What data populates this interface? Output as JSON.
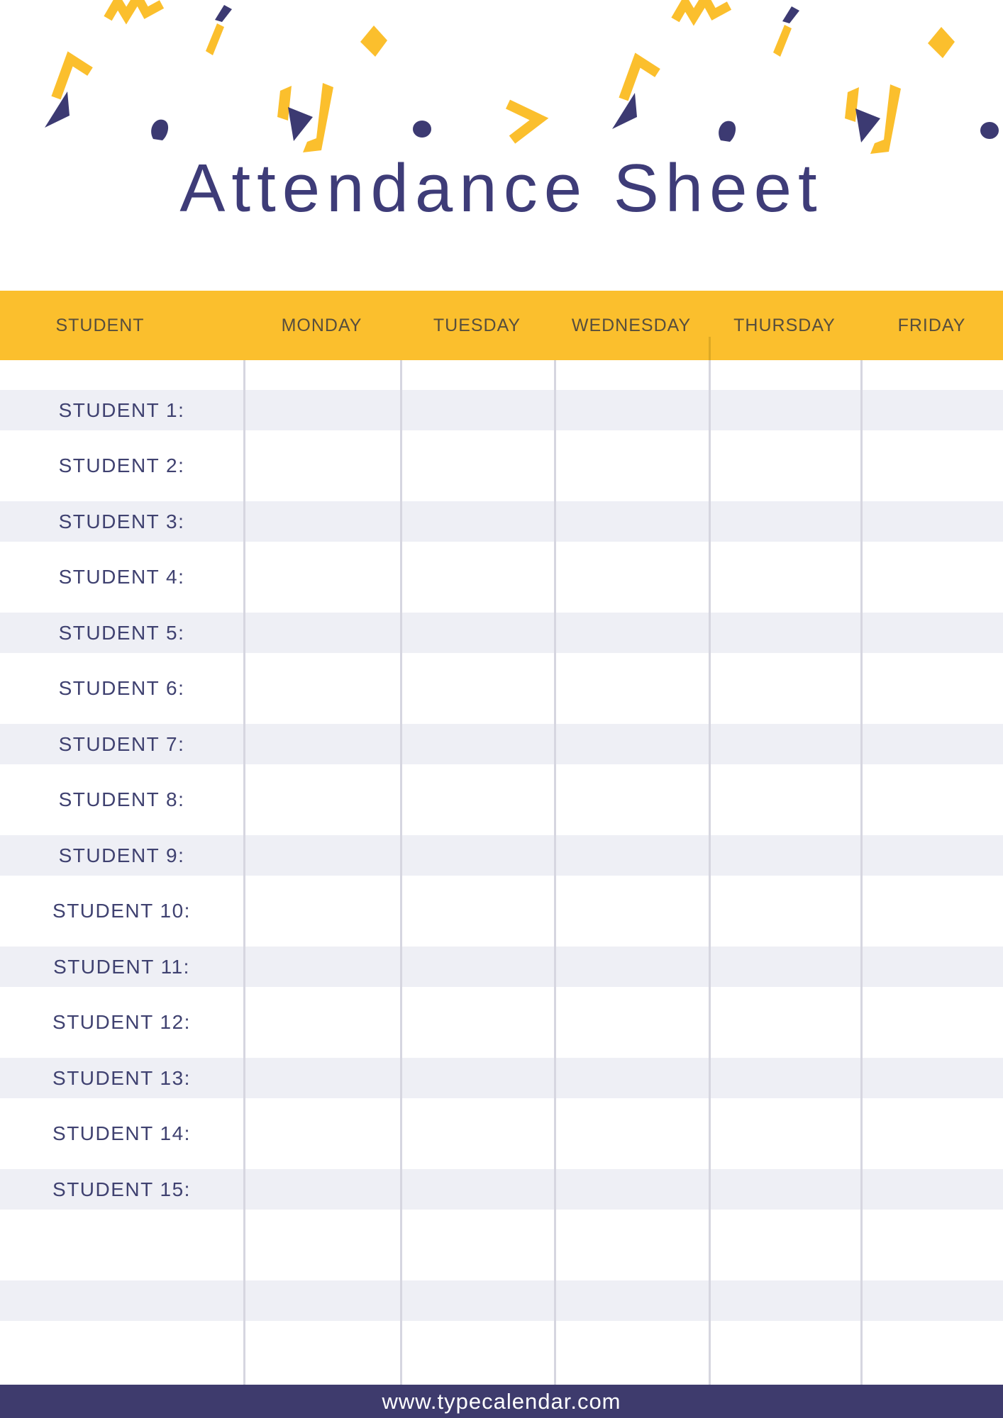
{
  "title": "Attendance Sheet",
  "header_decoration": {
    "shapes": [
      "zigzag",
      "check-mark",
      "pencil-slash",
      "diamond",
      "chevron",
      "triangle",
      "comma-blob",
      "v-ribbon",
      "dot",
      "arrow-right"
    ],
    "colors": {
      "yellow": "#FBBF2D",
      "navy": "#3C3A72"
    }
  },
  "table": {
    "columns": [
      "STUDENT",
      "MONDAY",
      "TUESDAY",
      "WEDNESDAY",
      "THURSDAY",
      "FRIDAY"
    ],
    "rows": [
      "STUDENT 1:",
      "STUDENT 2:",
      "STUDENT 3:",
      "STUDENT 4:",
      "STUDENT 5:",
      "STUDENT 6:",
      "STUDENT 7:",
      "STUDENT 8:",
      "STUDENT 9:",
      "STUDENT 10:",
      "STUDENT 11:",
      "STUDENT 12:",
      "STUDENT 13:",
      "STUDENT 14:",
      "STUDENT 15:"
    ],
    "empty_row_count": 3
  },
  "footer": {
    "url": "www.typecalendar.com"
  },
  "theme": {
    "yellow": "#FBBF2D",
    "navy": "#3C3A72",
    "title_color": "#3E3C78",
    "header_text": "#574E3D",
    "row_text": "#3F4170",
    "row_stripe": "#EEEFF5",
    "divider": "#D6D6E0",
    "footer_bg": "#3E3B6D",
    "footer_text": "#FFFFFF"
  }
}
